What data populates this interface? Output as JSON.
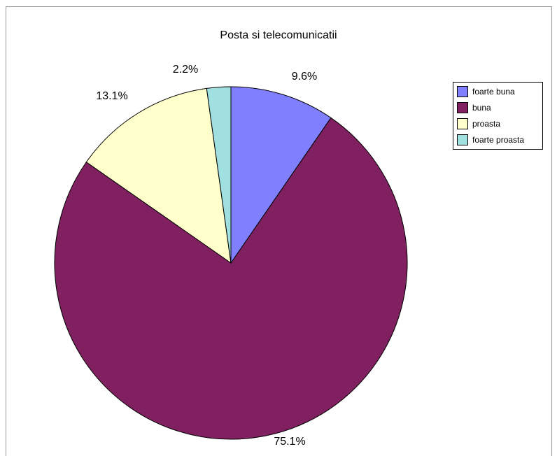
{
  "chart_data": {
    "type": "pie",
    "title": "Posta si telecomunicatii",
    "categories": [
      "foarte buna",
      "buna",
      "proasta",
      "foarte proasta"
    ],
    "values": [
      9.6,
      75.1,
      13.1,
      2.2
    ],
    "labels": [
      "9.6%",
      "75.1%",
      "13.1%",
      "2.2%"
    ],
    "colors": [
      "#8080ff",
      "#802060",
      "#ffffcc",
      "#a0e0e0"
    ],
    "legend_position": "right"
  }
}
